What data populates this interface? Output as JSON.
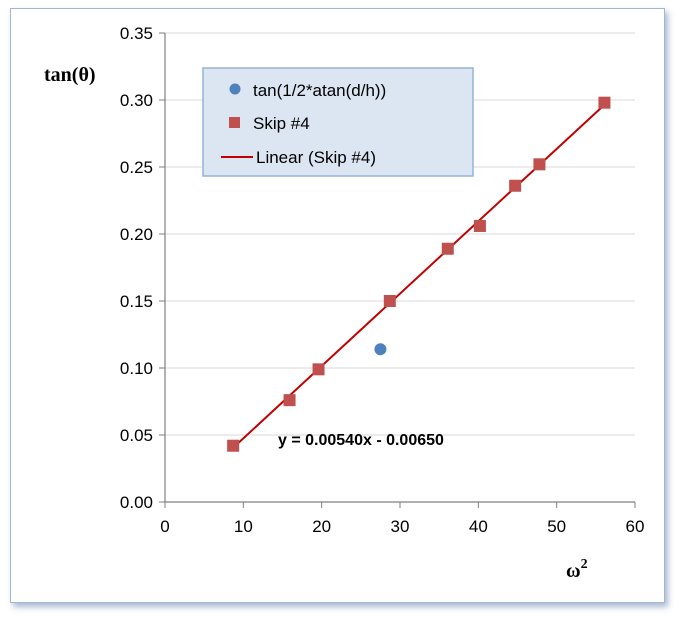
{
  "colors": {
    "series1": "#4f81bd",
    "series2": "#c0504d",
    "trendline": "#c00000",
    "gridline": "#d9d9d9",
    "legend_fill": "#dce6f2",
    "legend_border": "#95b3d7",
    "frame_border": "#9fb6d6"
  },
  "chart_data": {
    "type": "scatter",
    "xlabel": "ω",
    "xlabel_superscript": "2",
    "ylabel": "tan(θ)",
    "xlim": [
      0,
      60
    ],
    "ylim": [
      0,
      0.35
    ],
    "xticks": [
      0,
      10,
      20,
      30,
      40,
      50,
      60
    ],
    "xtick_labels": [
      "0",
      "10",
      "20",
      "30",
      "40",
      "50",
      "60"
    ],
    "yticks": [
      0,
      0.05,
      0.1,
      0.15,
      0.2,
      0.25,
      0.3,
      0.35
    ],
    "ytick_labels": [
      "0.00",
      "0.05",
      "0.10",
      "0.15",
      "0.20",
      "0.25",
      "0.30",
      "0.35"
    ],
    "grid": "horizontal",
    "legend_position": "top-left",
    "series": [
      {
        "name": "tan(1/2*atan(d/h))",
        "marker": "circle",
        "points": [
          [
            27.5,
            0.114
          ]
        ]
      },
      {
        "name": "Skip #4",
        "marker": "square",
        "points": [
          [
            8.7,
            0.042
          ],
          [
            15.9,
            0.076
          ],
          [
            19.6,
            0.099
          ],
          [
            28.7,
            0.15
          ],
          [
            36.1,
            0.189
          ],
          [
            40.2,
            0.206
          ],
          [
            44.7,
            0.236
          ],
          [
            47.8,
            0.252
          ],
          [
            56.1,
            0.298
          ]
        ]
      }
    ],
    "trendline": {
      "name": "Linear (Skip #4)",
      "slope": 0.0054,
      "intercept": -0.0065,
      "x_range": [
        8.7,
        56.1
      ],
      "equation": "y = 0.00540x - 0.00650"
    }
  }
}
